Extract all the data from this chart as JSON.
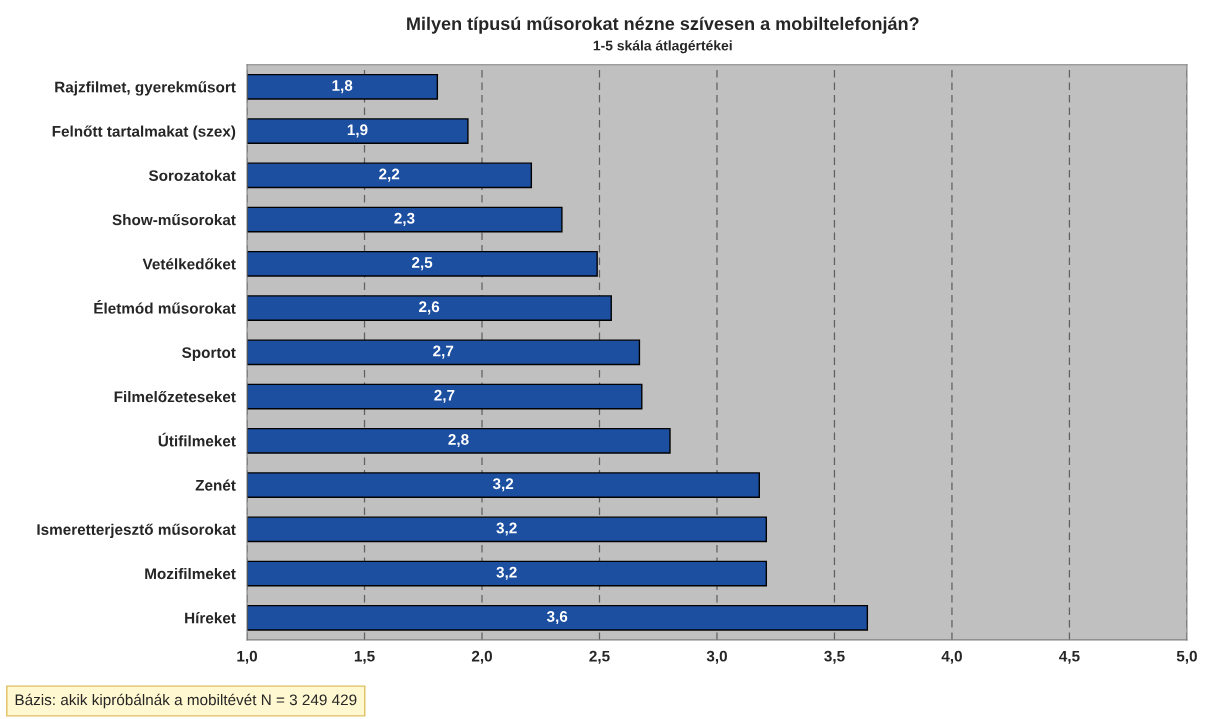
{
  "chart_data": {
    "type": "bar",
    "orientation": "horizontal",
    "title": "Milyen típusú műsorokat nézne szívesen a mobiltelefonján?",
    "subtitle": "1-5 skála átlagértékei",
    "categories": [
      "Rajzfilmet, gyerekműsort",
      "Felnőtt tartalmakat (szex)",
      "Sorozatokat",
      "Show-műsorokat",
      "Vetélkedőket",
      "Életmód műsorokat",
      "Sportot",
      "Filmelőzeteseket",
      "Útifilmeket",
      "Zenét",
      "Ismeretterjesztő műsorokat",
      "Mozifilmeket",
      "Híreket"
    ],
    "values": [
      1.81,
      1.94,
      2.21,
      2.34,
      2.49,
      2.55,
      2.67,
      2.68,
      2.8,
      3.18,
      3.21,
      3.21,
      3.64
    ],
    "value_labels": [
      "1,8",
      "1,9",
      "2,2",
      "2,3",
      "2,5",
      "2,6",
      "2,7",
      "2,7",
      "2,8",
      "3,2",
      "3,2",
      "3,2",
      "3,6"
    ],
    "color": "#1c4fa0",
    "xlim": [
      1.0,
      5.0
    ],
    "xticks": [
      {
        "value": 1.0,
        "label": "1,0"
      },
      {
        "value": 1.5,
        "label": "1,5"
      },
      {
        "value": 2.0,
        "label": "2,0"
      },
      {
        "value": 2.5,
        "label": "2,5"
      },
      {
        "value": 3.0,
        "label": "3,0"
      },
      {
        "value": 3.5,
        "label": "3,5"
      },
      {
        "value": 4.0,
        "label": "4,0"
      },
      {
        "value": 4.5,
        "label": "4,5"
      },
      {
        "value": 5.0,
        "label": "5,0"
      }
    ],
    "grid": "x",
    "annotations": [
      "Bázis: akik kipróbálnák a mobiltévét N = 3 249 429"
    ]
  }
}
